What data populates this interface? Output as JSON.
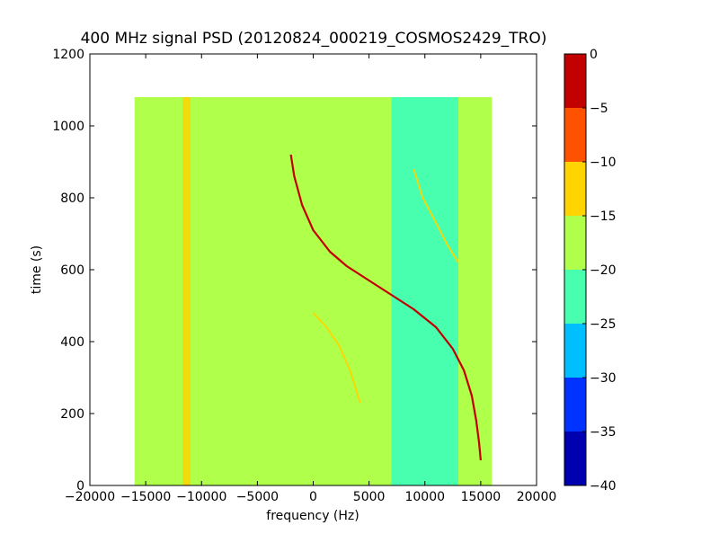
{
  "chart_data": {
    "type": "heatmap",
    "title": "400 MHz signal PSD (20120824_000219_COSMOS2429_TRO)",
    "xlabel": "frequency (Hz)",
    "ylabel": "time (s)",
    "xlim": [
      -20000,
      20000
    ],
    "ylim": [
      0,
      1200
    ],
    "xticks": [
      -20000,
      -15000,
      -10000,
      -5000,
      0,
      5000,
      10000,
      15000,
      20000
    ],
    "xtick_labels": [
      "−20000",
      "−15000",
      "−10000",
      "−5000",
      "0",
      "5000",
      "10000",
      "15000",
      "20000"
    ],
    "yticks": [
      0,
      200,
      400,
      600,
      800,
      1000,
      1200
    ],
    "ytick_labels": [
      "0",
      "200",
      "400",
      "600",
      "800",
      "1000",
      "1200"
    ],
    "data_extent": {
      "freq": [
        -16000,
        16000
      ],
      "time": [
        0,
        1080
      ]
    },
    "background_bands": [
      {
        "freq": [
          -16000,
          7000
        ],
        "level": -18.5
      },
      {
        "freq": [
          7000,
          13000
        ],
        "level": -21.5
      },
      {
        "freq": [
          13000,
          16000
        ],
        "level": -17.0
      }
    ],
    "vertical_lines": [
      {
        "freq": [
          -11700,
          -11000
        ],
        "time": [
          0,
          1080
        ],
        "level": -12
      },
      {
        "freq": [
          6400,
          7000
        ],
        "time": [
          0,
          1080
        ],
        "level": -16
      }
    ],
    "traces": [
      {
        "level": -2,
        "points": [
          [
            -2000,
            920
          ],
          [
            -1700,
            860
          ],
          [
            -1000,
            780
          ],
          [
            0,
            710
          ],
          [
            1500,
            650
          ],
          [
            3000,
            610
          ],
          [
            5000,
            570
          ],
          [
            7000,
            530
          ],
          [
            9000,
            490
          ],
          [
            11000,
            440
          ],
          [
            12500,
            380
          ],
          [
            13500,
            320
          ],
          [
            14200,
            250
          ],
          [
            14600,
            180
          ],
          [
            14850,
            120
          ],
          [
            15000,
            70
          ]
        ]
      },
      {
        "level": -13,
        "points": [
          [
            9000,
            880
          ],
          [
            9800,
            800
          ],
          [
            11000,
            730
          ],
          [
            12000,
            670
          ],
          [
            13000,
            620
          ]
        ]
      },
      {
        "level": -13,
        "points": [
          [
            0,
            480
          ],
          [
            1200,
            440
          ],
          [
            2300,
            390
          ],
          [
            3300,
            320
          ],
          [
            4200,
            230
          ]
        ]
      }
    ],
    "colorbar": {
      "levels": [
        -40,
        -35,
        -30,
        -25,
        -20,
        -15,
        -10,
        -5,
        0
      ],
      "tick_labels": [
        "−40",
        "−35",
        "−30",
        "−25",
        "−20",
        "−15",
        "−10",
        "−5",
        "0"
      ],
      "colors": [
        "#0000b0",
        "#0033ff",
        "#00bfff",
        "#48ffb0",
        "#b0ff4a",
        "#ffd400",
        "#ff5200",
        "#c30000"
      ]
    },
    "grid": false
  }
}
